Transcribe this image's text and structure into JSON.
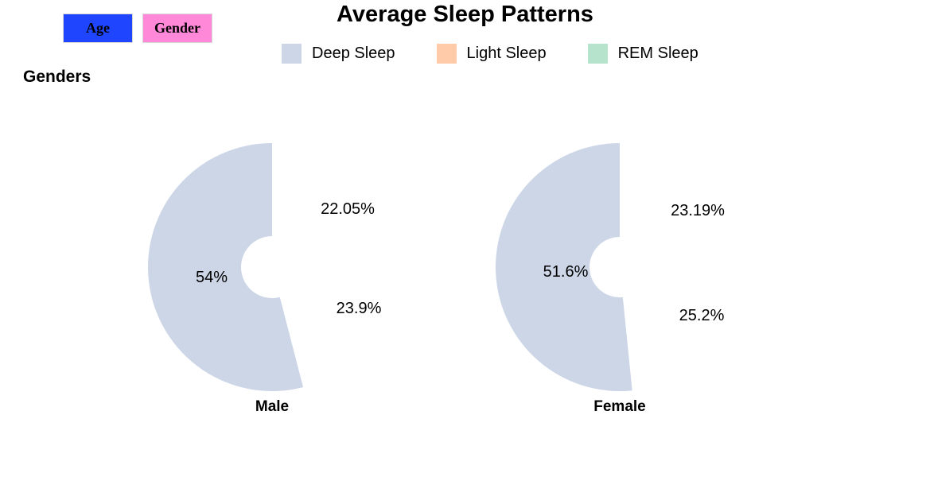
{
  "buttons": {
    "age_label": "Age",
    "age_color": "#1f45ff",
    "gender_label": "Gender",
    "gender_color": "#ff88d9"
  },
  "section_label": "Genders",
  "chart_data": {
    "type": "pie",
    "title": "Average Sleep Patterns",
    "series_names": [
      "Deep Sleep",
      "Light Sleep",
      "REM Sleep"
    ],
    "colors": [
      "#ccd6e7",
      "#ffcba8",
      "#b5e3cb"
    ],
    "legend_position": "top",
    "hole": "small center hole (donut)",
    "charts": [
      {
        "name": "Male",
        "values": [
          54,
          22.05,
          23.9
        ],
        "value_labels": [
          "54%",
          "22.05%",
          "23.9%"
        ]
      },
      {
        "name": "Female",
        "values": [
          51.6,
          23.19,
          25.2
        ],
        "value_labels": [
          "51.6%",
          "23.19%",
          "25.2%"
        ]
      }
    ]
  }
}
